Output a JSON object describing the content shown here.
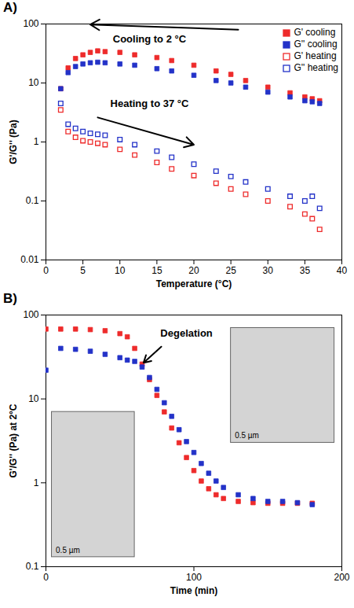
{
  "chart_data": [
    {
      "type": "scatter",
      "panel": "A)",
      "xlabel": "Temperature (°C)",
      "ylabel": "G'/G'' (Pa)",
      "x": [
        2,
        3,
        4,
        5,
        6,
        7,
        8,
        10,
        12,
        15,
        17,
        20,
        23,
        25,
        27,
        30,
        33,
        35,
        36,
        37
      ],
      "series": [
        {
          "name": "G' cooling",
          "color": "#ee2b2b",
          "marker": "square",
          "values": [
            8,
            18,
            26,
            30,
            33,
            35,
            34,
            33,
            30,
            27,
            24,
            20,
            16,
            14,
            11,
            8.5,
            6.8,
            5.8,
            5.4,
            5
          ]
        },
        {
          "name": "G'' cooling",
          "color": "#2332c8",
          "marker": "square",
          "values": [
            8,
            15,
            19,
            21,
            22,
            22.5,
            22,
            21,
            20,
            17.5,
            16,
            13.5,
            11,
            10,
            8.5,
            7,
            5.8,
            5,
            4.8,
            4.5
          ]
        },
        {
          "name": "G' heating",
          "color": "#ee2b2b",
          "marker": "square_open",
          "values": [
            3.5,
            1.5,
            1.2,
            1.05,
            1,
            0.95,
            0.9,
            0.75,
            0.6,
            0.45,
            0.35,
            0.27,
            0.2,
            0.16,
            0.13,
            0.1,
            0.08,
            0.06,
            0.05,
            0.033
          ]
        },
        {
          "name": "G'' heating",
          "color": "#2332c8",
          "marker": "square_open",
          "values": [
            4.5,
            2,
            1.7,
            1.5,
            1.4,
            1.35,
            1.3,
            1.1,
            0.9,
            0.7,
            0.55,
            0.42,
            0.32,
            0.26,
            0.21,
            0.16,
            0.12,
            0.1,
            0.12,
            0.075
          ]
        }
      ],
      "xlim": [
        0,
        40
      ],
      "xticks": [
        0,
        5,
        10,
        15,
        20,
        25,
        30,
        35,
        40
      ],
      "ylim": [
        0.01,
        100
      ],
      "yticks": [
        0.01,
        0.1,
        1,
        10,
        100
      ],
      "log": "y",
      "grid": false,
      "legend": "top-right",
      "annotations": [
        {
          "text": "Cooling to 2 °C",
          "x": 14,
          "y": 55,
          "arrow_x1": 26,
          "arrow_y1": 80,
          "arrow_x2": 6,
          "arrow_y2": 98
        },
        {
          "text": "Heating to 37 °C",
          "x": 14,
          "y": 4.5,
          "arrow_x1": 7,
          "arrow_y1": 2.6,
          "arrow_x2": 20,
          "arrow_y2": 0.9
        }
      ]
    },
    {
      "type": "scatter",
      "panel": "B)",
      "xlabel": "Time (min)",
      "ylabel": "G'/G'' (Pa) at 2°C",
      "x": [
        0,
        10,
        20,
        30,
        40,
        50,
        55,
        60,
        65,
        70,
        75,
        80,
        85,
        90,
        95,
        100,
        105,
        110,
        115,
        120,
        130,
        140,
        150,
        160,
        170,
        180
      ],
      "series": [
        {
          "color": "#ee2b2b",
          "marker": "square",
          "values": [
            68,
            68,
            68,
            67,
            65,
            60,
            55,
            40,
            26,
            17,
            11,
            7,
            4.5,
            3,
            2,
            1.4,
            1.05,
            0.85,
            0.72,
            0.65,
            0.6,
            0.58,
            0.57,
            0.57,
            0.57,
            0.57
          ]
        },
        {
          "color": "#2332c8",
          "marker": "square",
          "values": [
            22,
            40,
            39,
            37,
            34,
            31,
            29,
            28,
            24,
            18,
            13,
            9,
            6.2,
            4.3,
            3.1,
            2.3,
            1.7,
            1.3,
            1.05,
            0.88,
            0.72,
            0.65,
            0.6,
            0.6,
            0.58,
            0.55
          ]
        }
      ],
      "xlim": [
        0,
        200
      ],
      "xticks": [
        0,
        100,
        200
      ],
      "ylim": [
        0.1,
        100
      ],
      "yticks": [
        0.1,
        1,
        10,
        100
      ],
      "log": "y",
      "grid": false,
      "annotations": [
        {
          "text": "Degelation",
          "x": 95,
          "y": 60,
          "arrow_x1": 78,
          "arrow_y1": 42,
          "arrow_x2": 66,
          "arrow_y2": 27
        }
      ],
      "insets": [
        {
          "scale_bar": "0.5 µm",
          "x": [
            4,
            60
          ],
          "y": [
            0.13,
            7
          ]
        },
        {
          "scale_bar": "0.5 µm",
          "x": [
            125,
            195
          ],
          "y": [
            3,
            70
          ]
        }
      ]
    }
  ]
}
